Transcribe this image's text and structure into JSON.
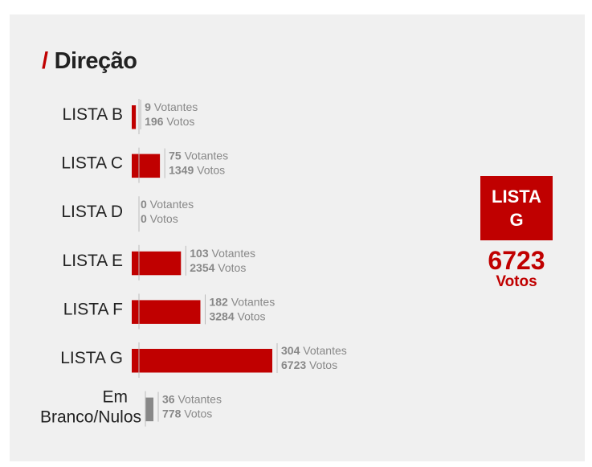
{
  "page": {
    "title": "Direção",
    "title_prefix": "/"
  },
  "winner": {
    "label": "LISTA G",
    "votes": "6723",
    "votes_label": "Votos"
  },
  "colors": {
    "accent": "#c00000",
    "neutral_bar": "#888888",
    "card_background": "#f0f0f0"
  },
  "chart_data": {
    "type": "bar",
    "orientation": "horizontal",
    "title": "Direção",
    "votantes_suffix": "Votantes",
    "votos_suffix": "Votos",
    "categories": [
      {
        "label": [
          "LISTA B"
        ],
        "votantes": 9,
        "votos": 196,
        "color": "#c00000"
      },
      {
        "label": [
          "LISTA C"
        ],
        "votantes": 75,
        "votos": 1349,
        "color": "#c00000"
      },
      {
        "label": [
          "LISTA D"
        ],
        "votantes": 0,
        "votos": 0,
        "color": "#c00000"
      },
      {
        "label": [
          "LISTA E"
        ],
        "votantes": 103,
        "votos": 2354,
        "color": "#c00000"
      },
      {
        "label": [
          "LISTA F"
        ],
        "votantes": 182,
        "votos": 3284,
        "color": "#c00000"
      },
      {
        "label": [
          "LISTA G"
        ],
        "votantes": 304,
        "votos": 6723,
        "color": "#c00000"
      },
      {
        "label": [
          "Em",
          "Branco/Nulos"
        ],
        "votantes": 36,
        "votos": 778,
        "color": "#888888"
      }
    ]
  }
}
